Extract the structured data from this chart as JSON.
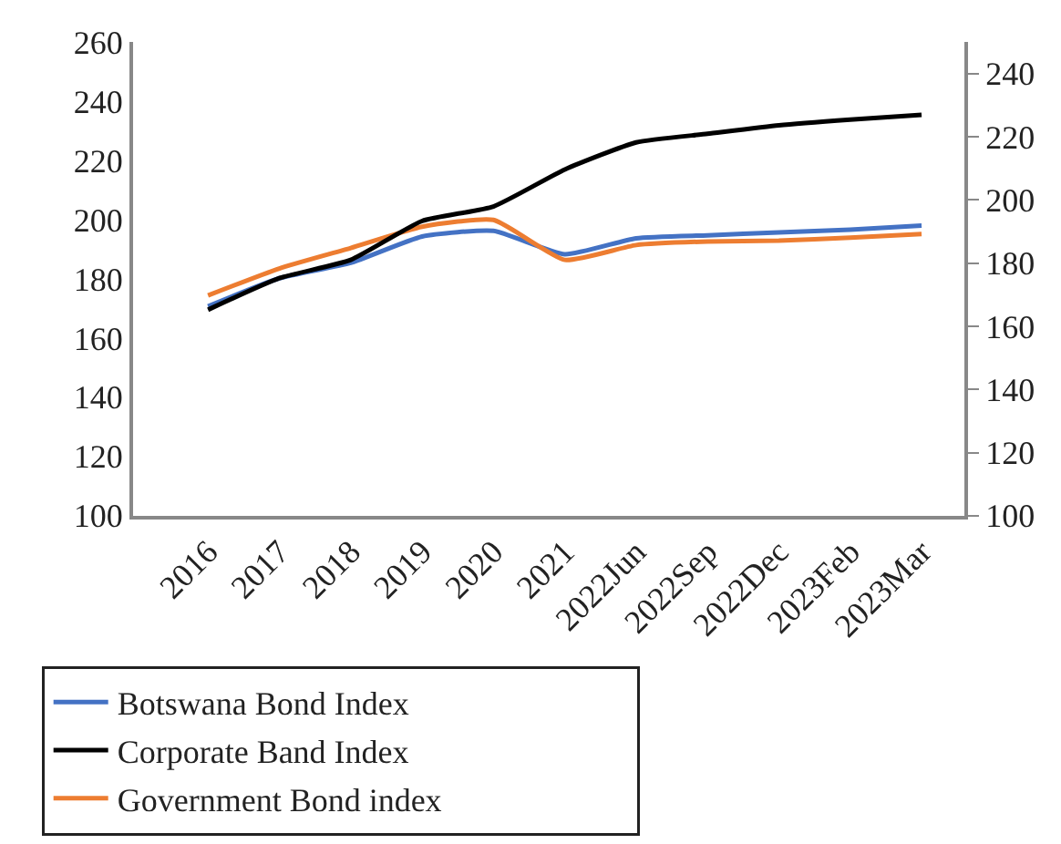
{
  "chart_data": {
    "type": "line",
    "categories": [
      "2016",
      "2017",
      "2018",
      "2019",
      "2020",
      "2021",
      "2022Jun",
      "2022Sep",
      "2022Dec",
      "2023Feb",
      "2023Mar"
    ],
    "series": [
      {
        "name": "Botswana Bond Index",
        "color": "#4472c4",
        "values": [
          170.7,
          180.2,
          185.4,
          194.3,
          196.2,
          188.3,
          193.7,
          194.7,
          195.7,
          196.6,
          198
        ]
      },
      {
        "name": "Corporate Band Index",
        "color": "#000000",
        "axis": "y2",
        "values": [
          165.2,
          175.2,
          181,
          193.3,
          197.9,
          209.6,
          218.2,
          220.9,
          223.6,
          225.4,
          226.9
        ]
      },
      {
        "name": "Government Bond index",
        "color": "#ed7d31",
        "values": [
          174.4,
          183.5,
          190.4,
          197.6,
          199.9,
          186.4,
          191.4,
          192.6,
          192.9,
          193.9,
          195.1
        ]
      }
    ],
    "ylim": [
      100,
      260
    ],
    "yticks": [
      100,
      120,
      140,
      160,
      180,
      200,
      220,
      240,
      260
    ],
    "y2lim": [
      100,
      250
    ],
    "y2ticks": [
      100,
      120,
      140,
      160,
      180,
      200,
      220,
      240
    ],
    "legend": "bottom",
    "marker": "none",
    "line_style": "solid"
  }
}
